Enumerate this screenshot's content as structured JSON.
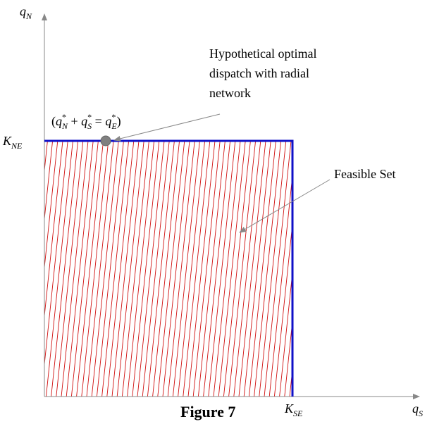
{
  "axes": {
    "y_label": {
      "base": "q",
      "sub": "N"
    },
    "x_label": {
      "base": "q",
      "sub": "S"
    },
    "y_tick": {
      "base": "K",
      "sub": "NE"
    },
    "x_tick": {
      "base": "K",
      "sub": "SE"
    }
  },
  "point_label": {
    "open": "(",
    "q1": "q",
    "q1_sub": "N",
    "star": "*",
    "plus": " + ",
    "q2": "q",
    "q2_sub": "S",
    "eq": " = ",
    "q3": "q",
    "q3_sub": "E",
    "close": ")"
  },
  "annotations": {
    "hypothetical_line1": "Hypothetical optimal",
    "hypothetical_line2": "dispatch with radial",
    "hypothetical_line3": "network",
    "feasible": "Feasible Set"
  },
  "caption": "Figure 7",
  "colors": {
    "boundary": "#1010c8",
    "hatch": "#d01010",
    "point": "#808080",
    "axis": "#888888"
  }
}
